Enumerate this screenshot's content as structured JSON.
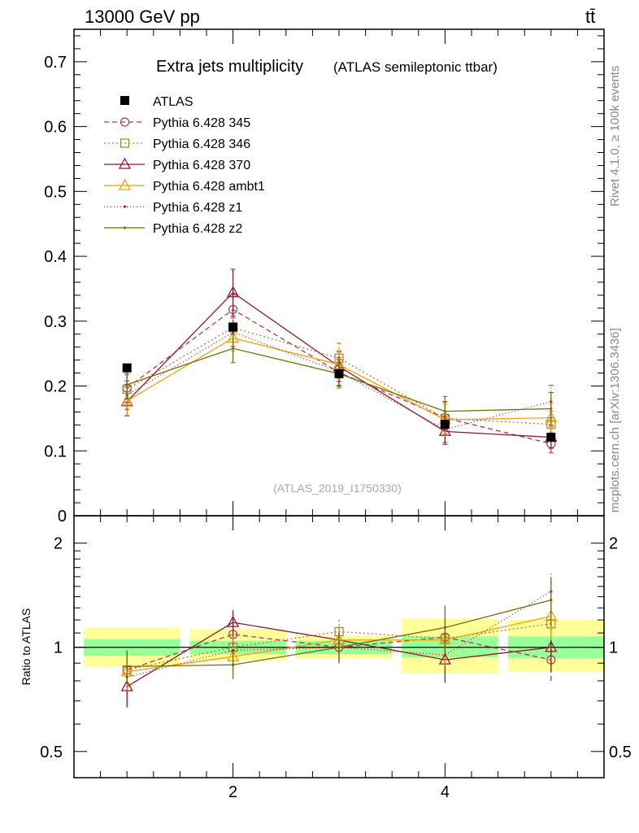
{
  "header": {
    "left": "13000 GeV pp",
    "right": "tt̄"
  },
  "side_labels": {
    "rivet": "Rivet 4.1.0, ≥ 100k events",
    "mcplots": "mcplots.cern.ch [arXiv:1306.3436]"
  },
  "chart_data": {
    "type": "line",
    "title": "Extra jets multiplicity",
    "subtitle": "(ATLAS semileptonic ttbar)",
    "watermark": "(ATLAS_2019_I1750330)",
    "xlabel": "",
    "ylabel": "",
    "ratio_ylabel": "Ratio to ATLAS",
    "xlim": [
      0.5,
      5.5
    ],
    "ylim": [
      0,
      0.75
    ],
    "ratio_ylim": [
      0.42,
      2.4
    ],
    "x_ticks": [
      2,
      4
    ],
    "y_ticks": [
      0,
      0.1,
      0.2,
      0.3,
      0.4,
      0.5,
      0.6,
      0.7
    ],
    "y_tick_labels": [
      "0",
      "0.1",
      "0.2",
      "0.3",
      "0.4",
      "0.5",
      "0.6",
      "0.7"
    ],
    "ratio_ticks": [
      0.5,
      1,
      2
    ],
    "ratio_tick_labels": [
      "0.5",
      "1",
      "2"
    ],
    "bin_edges": [
      0.5,
      1.5,
      2.5,
      3.5,
      4.5,
      5.5
    ],
    "data": {
      "name": "ATLAS",
      "x": [
        1,
        2,
        3,
        4,
        5
      ],
      "y": [
        0.228,
        0.291,
        0.219,
        0.141,
        0.121
      ],
      "band_stat_lo": [
        0.945,
        0.955,
        0.955,
        0.935,
        0.93
      ],
      "band_stat_hi": [
        1.055,
        1.045,
        1.045,
        1.075,
        1.075
      ],
      "band_tot_lo": [
        0.88,
        0.915,
        0.93,
        0.84,
        0.85
      ],
      "band_tot_hi": [
        1.14,
        1.13,
        1.08,
        1.21,
        1.2
      ]
    },
    "series": [
      {
        "name": "Pythia 6.428 345",
        "color": "#b03a48",
        "dash": "6,4",
        "marker": "circle",
        "x": [
          1,
          2,
          3,
          4,
          5
        ],
        "y": [
          0.197,
          0.318,
          0.221,
          0.151,
          0.111
        ],
        "err": [
          0.022,
          0.023,
          0.02,
          0.025,
          0.014
        ],
        "ratio": [
          0.86,
          1.09,
          1.0,
          1.07,
          0.92
        ],
        "ratio_err": [
          0.11,
          0.08,
          0.09,
          0.18,
          0.12
        ]
      },
      {
        "name": "Pythia 6.428 346",
        "color": "#b07d2e",
        "dash": "2,3",
        "marker": "square",
        "x": [
          1,
          2,
          3,
          4,
          5
        ],
        "y": [
          0.195,
          0.29,
          0.243,
          0.15,
          0.141
        ],
        "err": [
          0.022,
          0.022,
          0.023,
          0.025,
          0.02
        ],
        "ratio": [
          0.86,
          1.0,
          1.11,
          1.06,
          1.17
        ],
        "ratio_err": [
          0.1,
          0.08,
          0.1,
          0.17,
          0.16
        ]
      },
      {
        "name": "Pythia 6.428 370",
        "color": "#8b1a2b",
        "dash": "",
        "marker": "triangle",
        "x": [
          1,
          2,
          3,
          4,
          5
        ],
        "y": [
          0.176,
          0.344,
          0.23,
          0.13,
          0.121
        ],
        "err": [
          0.022,
          0.036,
          0.023,
          0.02,
          0.017
        ],
        "ratio": [
          0.77,
          1.18,
          1.05,
          0.92,
          1.0
        ],
        "ratio_err": [
          0.1,
          0.1,
          0.1,
          0.13,
          0.15
        ]
      },
      {
        "name": "Pythia 6.428 ambt1",
        "color": "#f4a008",
        "dash": "",
        "marker": "triangle",
        "x": [
          1,
          2,
          3,
          4,
          5
        ],
        "y": [
          0.177,
          0.274,
          0.233,
          0.148,
          0.151
        ],
        "err": [
          0.022,
          0.02,
          0.022,
          0.024,
          0.022
        ],
        "ratio": [
          0.85,
          0.94,
          1.05,
          1.05,
          1.23
        ],
        "ratio_err": [
          0.1,
          0.07,
          0.1,
          0.17,
          0.18
        ]
      },
      {
        "name": "Pythia 6.428 z1",
        "color": "#c0182d",
        "dash": "1,3",
        "marker": "dot",
        "x": [
          1,
          2,
          3,
          4,
          5
        ],
        "y": [
          0.186,
          0.283,
          0.222,
          0.133,
          0.176
        ],
        "err": [
          0.022,
          0.022,
          0.022,
          0.02,
          0.025
        ],
        "ratio": [
          0.82,
          0.98,
          1.0,
          0.95,
          1.45
        ],
        "ratio_err": [
          0.1,
          0.08,
          0.1,
          0.14,
          0.2
        ]
      },
      {
        "name": "Pythia 6.428 z2",
        "color": "#6b720a",
        "dash": "",
        "marker": "dot",
        "x": [
          1,
          2,
          3,
          4,
          5
        ],
        "y": [
          0.202,
          0.258,
          0.219,
          0.161,
          0.165
        ],
        "err": [
          0.022,
          0.022,
          0.022,
          0.023,
          0.025
        ],
        "ratio": [
          0.88,
          0.89,
          1.0,
          1.14,
          1.37
        ],
        "ratio_err": [
          0.1,
          0.08,
          0.1,
          0.18,
          0.22
        ]
      }
    ]
  }
}
